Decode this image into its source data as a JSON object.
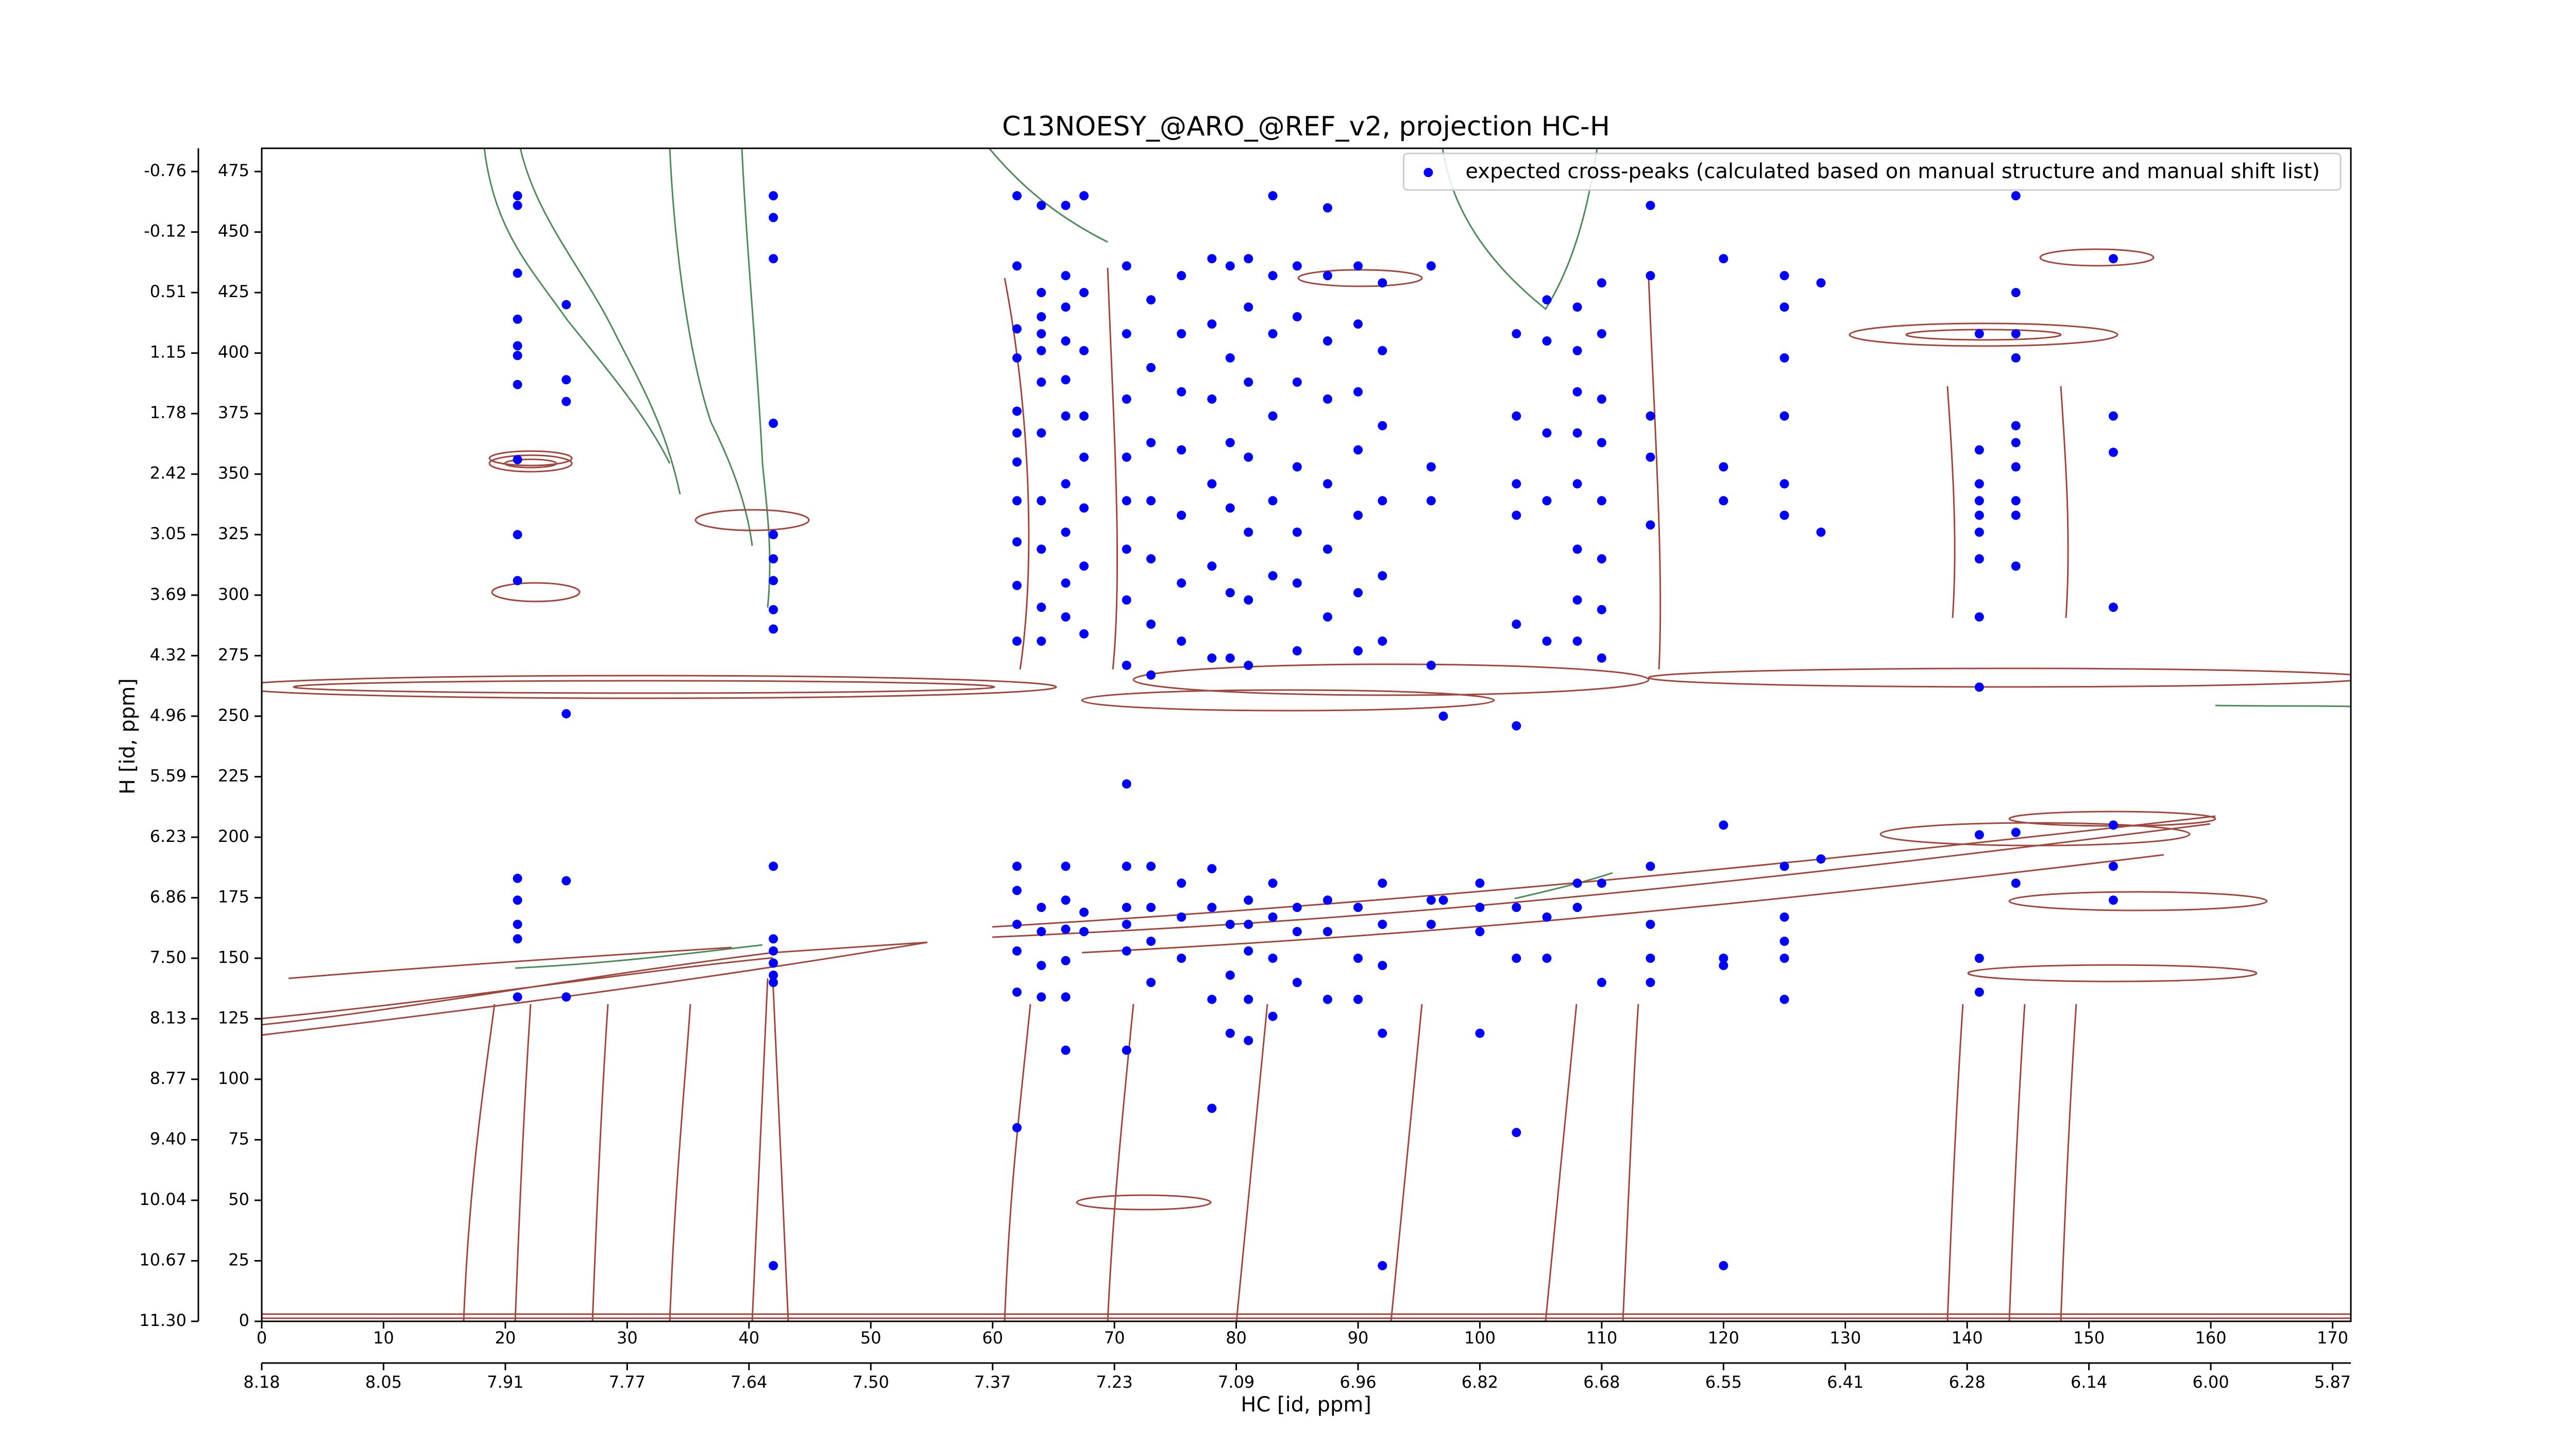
{
  "chart_data": {
    "type": "scatter",
    "title": "C13NOESY_@ARO_@REF_v2, projection HC-H",
    "x_label": "HC [id, ppm]",
    "y_label": "H [id, ppm]",
    "xlim": [
      0,
      171.5
    ],
    "ylim": [
      0,
      484.6
    ],
    "xticks": [
      0,
      10,
      20,
      30,
      40,
      50,
      60,
      70,
      80,
      90,
      100,
      110,
      120,
      130,
      140,
      150,
      160,
      170
    ],
    "x2ticks": [
      {
        "value": 0,
        "label": "8.18"
      },
      {
        "value": 10,
        "label": "8.05"
      },
      {
        "value": 20,
        "label": "7.91"
      },
      {
        "value": 30,
        "label": "7.77"
      },
      {
        "value": 40,
        "label": "7.64"
      },
      {
        "value": 50,
        "label": "7.50"
      },
      {
        "value": 60,
        "label": "7.37"
      },
      {
        "value": 70,
        "label": "7.23"
      },
      {
        "value": 80,
        "label": "7.09"
      },
      {
        "value": 90,
        "label": "6.96"
      },
      {
        "value": 100,
        "label": "6.82"
      },
      {
        "value": 110,
        "label": "6.68"
      },
      {
        "value": 120,
        "label": "6.55"
      },
      {
        "value": 130,
        "label": "6.41"
      },
      {
        "value": 140,
        "label": "6.28"
      },
      {
        "value": 150,
        "label": "6.14"
      },
      {
        "value": 160,
        "label": "6.00"
      },
      {
        "value": 170,
        "label": "5.87"
      }
    ],
    "yticks": [
      0,
      25,
      50,
      75,
      100,
      125,
      150,
      175,
      200,
      225,
      250,
      275,
      300,
      325,
      350,
      375,
      400,
      425,
      450,
      475
    ],
    "y2ticks": [
      {
        "value": 0,
        "label": "11.30"
      },
      {
        "value": 25,
        "label": "10.67"
      },
      {
        "value": 50,
        "label": "10.04"
      },
      {
        "value": 75,
        "label": "9.40"
      },
      {
        "value": 100,
        "label": "8.77"
      },
      {
        "value": 125,
        "label": "8.13"
      },
      {
        "value": 150,
        "label": "7.50"
      },
      {
        "value": 175,
        "label": "6.86"
      },
      {
        "value": 200,
        "label": "6.23"
      },
      {
        "value": 225,
        "label": "5.59"
      },
      {
        "value": 250,
        "label": "4.96"
      },
      {
        "value": 275,
        "label": "4.32"
      },
      {
        "value": 300,
        "label": "3.69"
      },
      {
        "value": 325,
        "label": "3.05"
      },
      {
        "value": 350,
        "label": "2.42"
      },
      {
        "value": 375,
        "label": "1.78"
      },
      {
        "value": 400,
        "label": "1.15"
      },
      {
        "value": 425,
        "label": "0.51"
      },
      {
        "value": 450,
        "label": "-0.12"
      },
      {
        "value": 475,
        "label": "-0.76"
      }
    ],
    "legend": "upper right",
    "series": [
      {
        "name": "expected cross-peaks (calculated based on manual structure and manual shift list)",
        "color": "#0000ff",
        "x": [
          21,
          21,
          21,
          21,
          21,
          21,
          21,
          21,
          21,
          21,
          21,
          21,
          21,
          21,
          21,
          25,
          25,
          25,
          25,
          25,
          25,
          42,
          42,
          42,
          42,
          42,
          42,
          42,
          42,
          42,
          42,
          42,
          42,
          42,
          42,
          42,
          42,
          62,
          62,
          62,
          62,
          62,
          62,
          62,
          62,
          62,
          62,
          62,
          62,
          62,
          62,
          62,
          62,
          62,
          64,
          64,
          64,
          64,
          64,
          64,
          64,
          64,
          64,
          64,
          64,
          64,
          64,
          64,
          64,
          66,
          66,
          66,
          66,
          66,
          66,
          66,
          66,
          66,
          66,
          66,
          66,
          66,
          66,
          66,
          66,
          67.5,
          67.5,
          67.5,
          67.5,
          67.5,
          67.5,
          67.5,
          67.5,
          67.5,
          67.5,
          71,
          71,
          71,
          71,
          71,
          71,
          71,
          71,
          71,
          71,
          71,
          71,
          71,
          71,
          73,
          73,
          73,
          73,
          73,
          73,
          73,
          73,
          73,
          73,
          73,
          75.5,
          75.5,
          75.5,
          75.5,
          75.5,
          75.5,
          75.5,
          75.5,
          75.5,
          75.5,
          78,
          78,
          78,
          78,
          78,
          78,
          78,
          78,
          78,
          78,
          79.5,
          79.5,
          79.5,
          79.5,
          79.5,
          79.5,
          79.5,
          79.5,
          79.5,
          81,
          81,
          81,
          81,
          81,
          81,
          81,
          81,
          81,
          81,
          81,
          81,
          83,
          83,
          83,
          83,
          83,
          83,
          83,
          83,
          83,
          83,
          85,
          85,
          85,
          85,
          85,
          85,
          85,
          85,
          85,
          85,
          87.5,
          87.5,
          87.5,
          87.5,
          87.5,
          87.5,
          87.5,
          87.5,
          87.5,
          87.5,
          90,
          90,
          90,
          90,
          90,
          90,
          90,
          90,
          90,
          90,
          92,
          92,
          92,
          92,
          92,
          92,
          92,
          92,
          92,
          92,
          92,
          96,
          96,
          96,
          96,
          96,
          96,
          97,
          97,
          100,
          100,
          100,
          100,
          103,
          103,
          103,
          103,
          103,
          103,
          103,
          103,
          103,
          105.5,
          105.5,
          105.5,
          105.5,
          105.5,
          105.5,
          105.5,
          108,
          108,
          108,
          108,
          108,
          108,
          108,
          108,
          108,
          108,
          110,
          110,
          110,
          110,
          110,
          110,
          110,
          110,
          110,
          110,
          114,
          114,
          114,
          114,
          114,
          114,
          114,
          114,
          114,
          120,
          120,
          120,
          120,
          120,
          120,
          120,
          125,
          125,
          125,
          125,
          125,
          125,
          125,
          125,
          125,
          125,
          125,
          128,
          128,
          128,
          141,
          141,
          141,
          141,
          141,
          141,
          141,
          141,
          141,
          141,
          141,
          141,
          144,
          144,
          144,
          144,
          144,
          144,
          144,
          144,
          144,
          144,
          144,
          144,
          152,
          152,
          152,
          152,
          152,
          152,
          152
        ],
        "values": [
          465,
          461,
          433,
          414,
          403,
          399,
          387,
          356,
          325,
          306,
          183,
          174,
          164,
          158,
          134,
          420,
          389,
          380,
          251,
          182,
          134,
          465,
          456,
          439,
          371,
          325,
          315,
          306,
          294,
          286,
          188,
          158,
          153,
          148,
          143,
          140,
          23,
          436,
          410,
          398,
          376,
          367,
          355,
          339,
          322,
          304,
          281,
          188,
          178,
          164,
          153,
          136,
          465,
          80,
          425,
          415,
          408,
          401,
          388,
          367,
          339,
          319,
          295,
          281,
          171,
          161,
          147,
          134,
          461,
          461,
          432,
          419,
          405,
          389,
          374,
          346,
          326,
          305,
          291,
          188,
          174,
          162,
          149,
          134,
          112,
          425,
          401,
          374,
          357,
          336,
          312,
          284,
          169,
          161,
          465,
          436,
          408,
          381,
          357,
          339,
          319,
          298,
          271,
          222,
          188,
          171,
          164,
          153,
          112,
          422,
          394,
          363,
          339,
          315,
          288,
          267,
          188,
          171,
          157,
          140,
          432,
          408,
          384,
          360,
          333,
          305,
          281,
          181,
          167,
          150,
          439,
          412,
          381,
          346,
          312,
          274,
          187,
          171,
          133,
          88,
          436,
          398,
          363,
          336,
          301,
          274,
          164,
          143,
          119,
          439,
          419,
          388,
          357,
          326,
          298,
          271,
          174,
          164,
          153,
          133,
          116,
          465,
          432,
          408,
          374,
          339,
          308,
          181,
          167,
          150,
          126,
          436,
          415,
          388,
          353,
          326,
          305,
          277,
          171,
          161,
          140,
          460,
          432,
          405,
          381,
          346,
          319,
          291,
          174,
          161,
          133,
          436,
          412,
          384,
          360,
          333,
          301,
          277,
          171,
          150,
          133,
          429,
          401,
          370,
          339,
          308,
          281,
          181,
          164,
          147,
          119,
          23,
          436,
          353,
          339,
          271,
          174,
          164,
          250,
          174,
          181,
          171,
          161,
          119,
          408,
          374,
          346,
          333,
          288,
          246,
          171,
          150,
          78,
          422,
          405,
          367,
          339,
          281,
          167,
          150,
          419,
          401,
          384,
          367,
          346,
          319,
          298,
          281,
          181,
          171,
          429,
          408,
          381,
          363,
          339,
          315,
          294,
          274,
          181,
          140,
          461,
          432,
          374,
          357,
          329,
          188,
          164,
          150,
          140,
          439,
          353,
          339,
          205,
          150,
          147,
          23,
          432,
          419,
          398,
          374,
          346,
          333,
          188,
          167,
          157,
          150,
          133,
          429,
          326,
          191,
          408,
          360,
          346,
          339,
          333,
          326,
          315,
          291,
          262,
          201,
          150,
          136,
          465,
          425,
          408,
          398,
          370,
          363,
          353,
          339,
          333,
          312,
          202,
          181,
          439,
          374,
          359,
          295,
          205,
          188,
          174
        ]
      }
    ]
  }
}
